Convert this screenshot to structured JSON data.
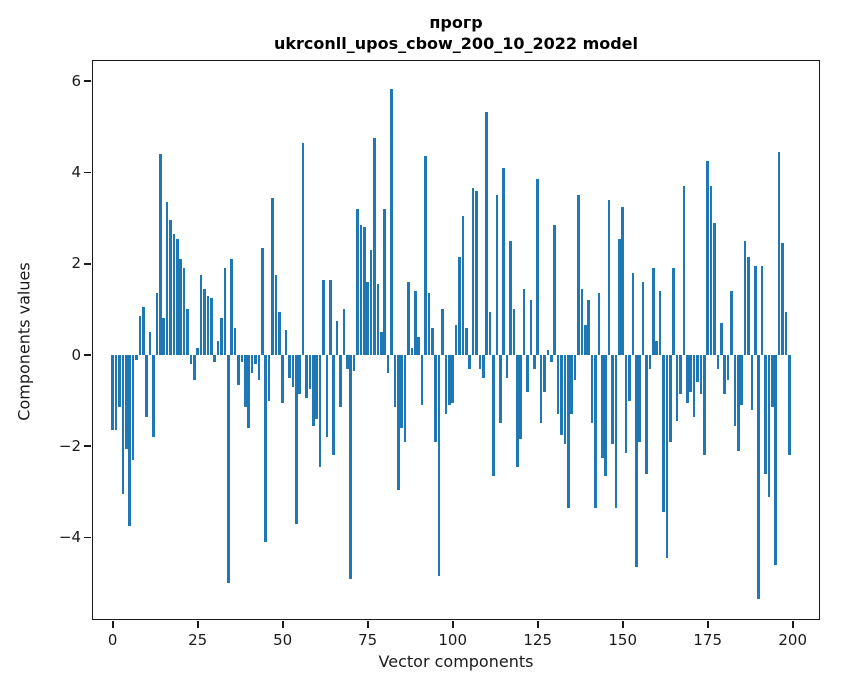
{
  "title": {
    "line1": "прогр",
    "line2": "ukrconll_upos_cbow_200_10_2022 model"
  },
  "axes": {
    "xlabel": "Vector components",
    "ylabel": "Components values",
    "x_ticks": [
      0,
      25,
      50,
      75,
      100,
      125,
      150,
      175,
      200
    ],
    "y_ticks": [
      6,
      4,
      2,
      0,
      -2,
      -4
    ]
  },
  "chart_data": {
    "type": "bar",
    "title": "прогр — ukrconll_upos_cbow_200_10_2022 model",
    "xlabel": "Vector components",
    "ylabel": "Components values",
    "x_description": "vector component index 0..199 (one bar per component)",
    "n_points": 200,
    "xlim": [
      -9,
      209
    ],
    "ylim": [
      -5.85,
      6.45
    ],
    "grid": false,
    "legend": false,
    "bar_color": "#1f77b4",
    "values": [
      -1.65,
      -1.65,
      -1.15,
      -3.05,
      -2.05,
      -3.75,
      -2.3,
      -0.1,
      0.85,
      1.05,
      -1.35,
      0.5,
      -1.8,
      1.35,
      4.4,
      0.8,
      3.35,
      2.95,
      2.65,
      2.55,
      2.1,
      1.9,
      1.0,
      -0.2,
      -0.55,
      0.15,
      1.75,
      1.45,
      1.3,
      1.25,
      -0.15,
      0.3,
      0.8,
      1.9,
      -5.0,
      2.1,
      0.6,
      -0.65,
      -0.15,
      -1.15,
      -1.6,
      -0.4,
      -0.2,
      -0.55,
      2.35,
      -4.1,
      -1.0,
      3.45,
      1.75,
      0.95,
      -1.05,
      0.55,
      -0.5,
      -0.7,
      -3.7,
      -0.85,
      4.65,
      -0.95,
      -0.75,
      -1.55,
      -1.4,
      -2.45,
      1.65,
      -1.8,
      1.65,
      -2.2,
      0.75,
      -1.15,
      1.0,
      -0.3,
      -4.9,
      -0.35,
      3.2,
      2.85,
      2.8,
      1.6,
      2.3,
      4.75,
      1.55,
      0.5,
      3.2,
      -0.4,
      5.82,
      -1.15,
      -2.95,
      -1.6,
      -1.9,
      1.6,
      0.15,
      1.4,
      0.4,
      -1.1,
      4.35,
      1.35,
      0.6,
      -1.9,
      -4.85,
      1.0,
      -1.3,
      -1.1,
      -1.05,
      0.65,
      2.15,
      3.05,
      0.6,
      -0.3,
      3.65,
      3.6,
      -0.3,
      -0.5,
      5.33,
      0.95,
      -2.65,
      3.5,
      -1.5,
      4.1,
      -0.5,
      2.5,
      1.0,
      -2.45,
      -1.85,
      1.45,
      -0.8,
      1.2,
      -0.3,
      3.85,
      -1.5,
      -0.8,
      0.1,
      -0.15,
      2.85,
      -1.3,
      -1.75,
      -1.95,
      -3.35,
      -1.3,
      -0.55,
      3.5,
      1.45,
      0.65,
      1.2,
      -1.5,
      -3.35,
      1.35,
      -2.25,
      -2.65,
      3.4,
      -1.95,
      -3.35,
      2.55,
      3.25,
      -2.15,
      -1.0,
      1.8,
      -4.65,
      -1.9,
      1.6,
      -2.6,
      -0.3,
      1.9,
      0.3,
      1.4,
      -3.45,
      -4.45,
      -1.9,
      1.9,
      -1.45,
      -0.85,
      3.7,
      -1.05,
      -0.8,
      -1.35,
      -0.6,
      -0.85,
      -2.2,
      4.25,
      3.7,
      2.9,
      -0.3,
      0.7,
      -0.85,
      -0.55,
      1.4,
      -1.55,
      -2.1,
      -1.1,
      2.5,
      2.15,
      -1.2,
      1.95,
      -5.35,
      1.95,
      -2.6,
      -3.1,
      -1.15,
      -4.6,
      4.45,
      2.45,
      0.95,
      -2.2
    ]
  }
}
